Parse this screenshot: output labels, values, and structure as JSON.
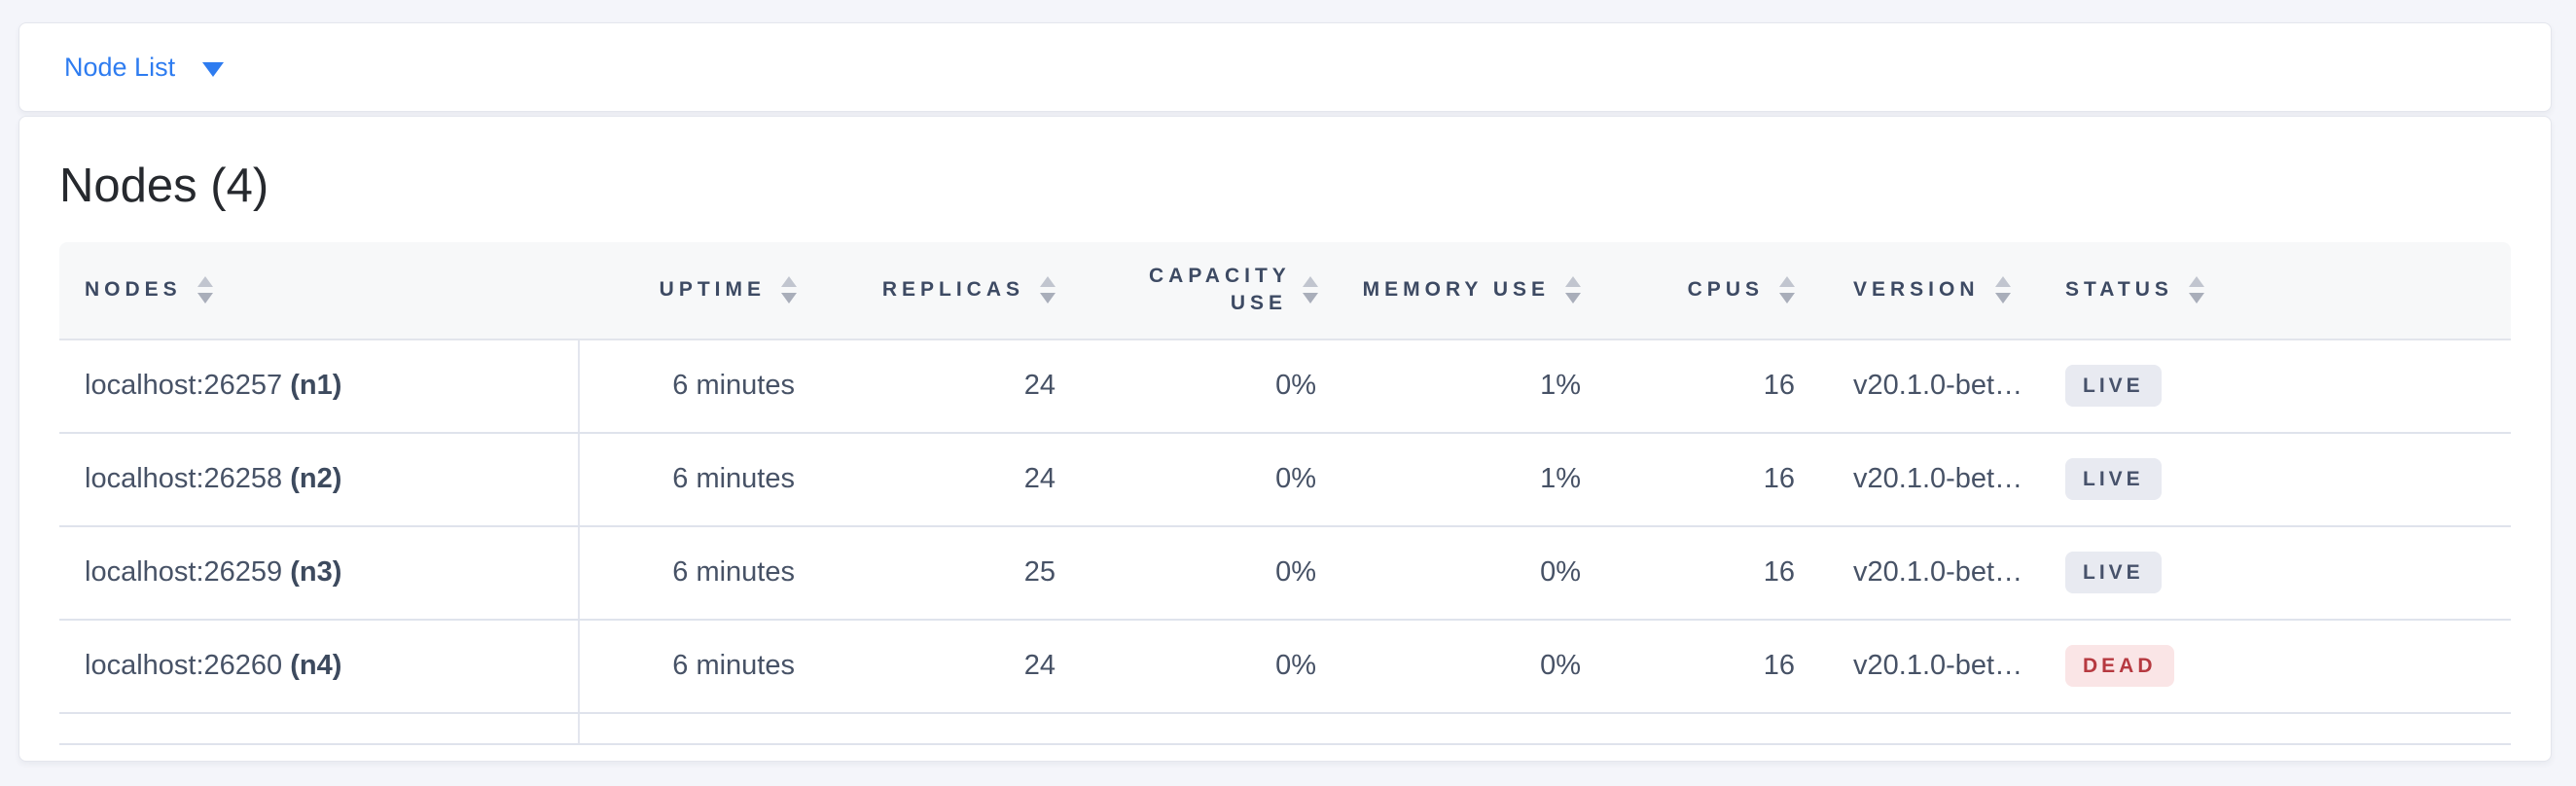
{
  "toolbar": {
    "view_label": "Node List",
    "caret_icon": "caret-down-icon"
  },
  "page": {
    "title": "Nodes (4)"
  },
  "table": {
    "sort_icon": "sort-arrows-icon",
    "columns": [
      {
        "key": "nodes",
        "label": "NODES",
        "align": "left"
      },
      {
        "key": "uptime",
        "label": "UPTIME",
        "align": "right"
      },
      {
        "key": "replicas",
        "label": "REPLICAS",
        "align": "right"
      },
      {
        "key": "capacity_use",
        "label": "CAPACITY USE",
        "align": "right"
      },
      {
        "key": "memory_use",
        "label": "MEMORY USE",
        "align": "right"
      },
      {
        "key": "cpus",
        "label": "CPUS",
        "align": "right"
      },
      {
        "key": "version",
        "label": "VERSION",
        "align": "left"
      },
      {
        "key": "status",
        "label": "STATUS",
        "align": "left"
      }
    ],
    "rows": [
      {
        "nodes": {
          "address": "localhost:26257",
          "id": "(n1)"
        },
        "uptime": "6 minutes",
        "replicas": "24",
        "capacity_use": "0%",
        "memory_use": "1%",
        "cpus": "16",
        "version": "v20.1.0-bet…",
        "status": "LIVE"
      },
      {
        "nodes": {
          "address": "localhost:26258",
          "id": "(n2)"
        },
        "uptime": "6 minutes",
        "replicas": "24",
        "capacity_use": "0%",
        "memory_use": "1%",
        "cpus": "16",
        "version": "v20.1.0-bet…",
        "status": "LIVE"
      },
      {
        "nodes": {
          "address": "localhost:26259",
          "id": "(n3)"
        },
        "uptime": "6 minutes",
        "replicas": "25",
        "capacity_use": "0%",
        "memory_use": "0%",
        "cpus": "16",
        "version": "v20.1.0-bet…",
        "status": "LIVE"
      },
      {
        "nodes": {
          "address": "localhost:26260",
          "id": "(n4)"
        },
        "uptime": "6 minutes",
        "replicas": "24",
        "capacity_use": "0%",
        "memory_use": "0%",
        "cpus": "16",
        "version": "v20.1.0-bet…",
        "status": "DEAD"
      }
    ]
  },
  "colors": {
    "accent_blue": "#2e7cf0",
    "status_live_bg": "#e8eaf1",
    "status_live_text": "#47526b",
    "status_dead_bg": "#fae5e6",
    "status_dead_text": "#b63940"
  }
}
